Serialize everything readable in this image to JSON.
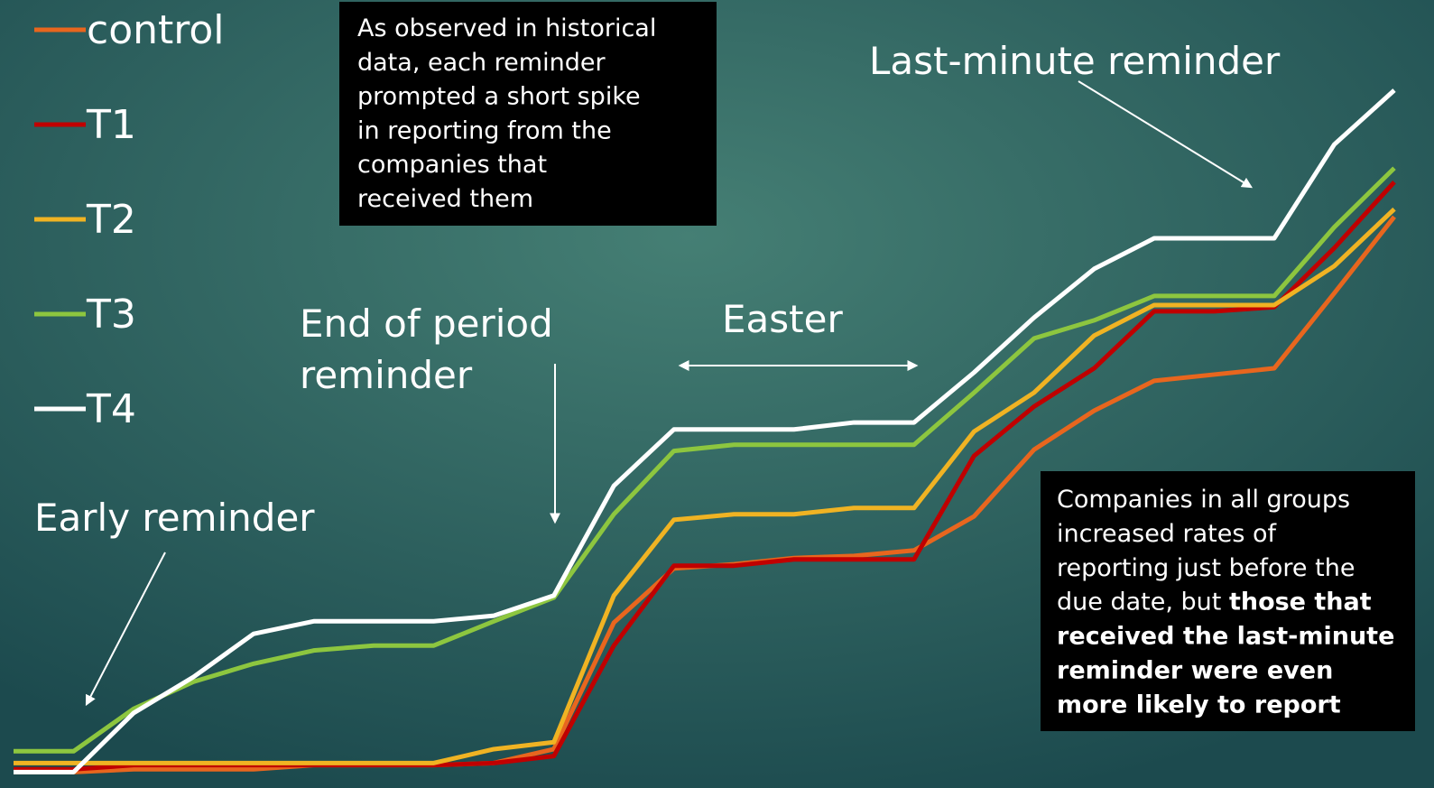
{
  "chart_data": {
    "type": "line",
    "categories": [
      null,
      null,
      null,
      null,
      null,
      null,
      null,
      null,
      null,
      null,
      null,
      null,
      null,
      null,
      null,
      null,
      null,
      null,
      null,
      null,
      null,
      null,
      null,
      null
    ],
    "ylim": [
      0,
      100
    ],
    "series": [
      {
        "name": "control",
        "color": "#e8661e",
        "values": [
          0.6,
          0.6,
          1,
          1,
          1,
          1.6,
          1.6,
          1.6,
          1.9,
          3.9,
          22.1,
          29.9,
          30.5,
          31.4,
          31.7,
          32.5,
          37.4,
          47,
          52.6,
          56.9,
          57.8,
          58.7,
          69.5,
          80.5
        ]
      },
      {
        "name": "T1",
        "color": "#c00000",
        "values": [
          1,
          1,
          1.6,
          1.6,
          1.6,
          1.6,
          1.6,
          1.6,
          1.9,
          2.9,
          18.8,
          30.3,
          30.3,
          31.2,
          31.2,
          31.2,
          46.1,
          53.2,
          58.7,
          66.9,
          66.9,
          67.5,
          76,
          85.5
        ]
      },
      {
        "name": "T2",
        "color": "#f0b323",
        "values": [
          1.9,
          1.9,
          1.9,
          1.9,
          1.9,
          1.9,
          1.9,
          1.9,
          3.9,
          4.9,
          26,
          36.9,
          37.7,
          37.7,
          38.6,
          38.6,
          49.6,
          55.2,
          63.4,
          67.8,
          67.8,
          67.8,
          73.4,
          81.6
        ]
      },
      {
        "name": "T3",
        "color": "#8dc63f",
        "values": [
          3.6,
          3.6,
          9.7,
          13.6,
          16.2,
          18.1,
          18.8,
          18.8,
          22.3,
          25.7,
          37.7,
          46.8,
          47.7,
          47.7,
          47.7,
          47.7,
          55.2,
          63,
          65.6,
          69.1,
          69.1,
          69.1,
          79,
          87.5
        ]
      },
      {
        "name": "T4",
        "color": "#ffffff",
        "values": [
          0.6,
          0.6,
          9.1,
          14.3,
          20.5,
          22.3,
          22.3,
          22.3,
          23.1,
          26,
          41.8,
          49.9,
          49.9,
          49.9,
          50.9,
          50.9,
          58.1,
          66,
          73,
          77.4,
          77.4,
          77.4,
          90.9,
          98.7
        ]
      }
    ],
    "annotations": {
      "early": "Early reminder",
      "end_of_period": [
        "End of period",
        "reminder"
      ],
      "easter": "Easter",
      "last_minute": "Last-minute reminder",
      "note1": [
        "As observed in historical",
        "data, each reminder",
        "prompted a short spike",
        "in reporting from the",
        "companies that",
        "received them"
      ],
      "note2": {
        "lines": [
          "Companies in all groups",
          "increased rates of",
          "reporting just before the",
          "due date, but"
        ],
        "bold_lines": [
          "those that",
          "received the last-minute",
          "reminder were even",
          "more likely to report"
        ]
      }
    }
  }
}
